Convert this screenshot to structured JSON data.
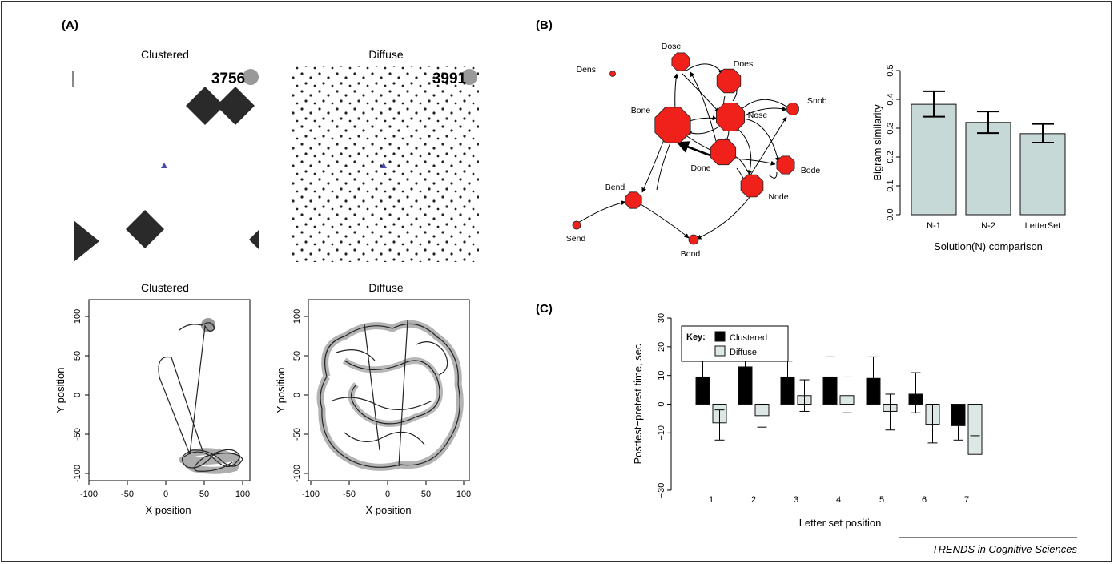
{
  "labels": {
    "a": "(A)",
    "b": "(B)",
    "c": "(C)"
  },
  "footer": "TRENDS in Cognitive Sciences",
  "panel_a": {
    "titles": [
      "Clustered",
      "Diffuse",
      "Clustered",
      "Diffuse"
    ],
    "counters": [
      "3756",
      "3991"
    ],
    "xlabel": "X position",
    "ylabel": "Y position",
    "ticks": [
      "-100",
      "-50",
      "0",
      "50",
      "100"
    ]
  },
  "chart_data": [
    {
      "type": "bar",
      "categories": [
        "N-1",
        "N-2",
        "LetterSet"
      ],
      "values": [
        0.383,
        0.32,
        0.281
      ],
      "error_low": [
        0.34,
        0.283,
        0.25
      ],
      "error_high": [
        0.428,
        0.358,
        0.315
      ],
      "ylim": [
        0,
        0.5
      ],
      "yticks": [
        "0.0",
        "0.1",
        "0.2",
        "0.3",
        "0.4",
        "0.5"
      ],
      "xlabel": "Solution(N) comparison",
      "ylabel": "Bigram similarity",
      "color": "#c7d9d7"
    },
    {
      "type": "bar",
      "categories": [
        "1",
        "2",
        "3",
        "4",
        "5",
        "6",
        "7"
      ],
      "series": [
        {
          "name": "Clustered",
          "values": [
            9.5,
            13,
            9.5,
            9.5,
            9,
            3.5,
            -7.5
          ],
          "error_low": [
            2.5,
            6.5,
            3,
            3,
            1.5,
            -3,
            -12.5
          ],
          "error_high": [
            16,
            19,
            15,
            16.5,
            16.5,
            11,
            -2.5
          ],
          "color": "#000000"
        },
        {
          "name": "Diffuse",
          "values": [
            -6.5,
            -4,
            3,
            3,
            -2.5,
            -7,
            -17.5
          ],
          "error_low": [
            -12.5,
            -8,
            -2.5,
            -3,
            -9,
            -13.5,
            -24
          ],
          "error_high": [
            -2,
            0,
            8.5,
            9.5,
            3.5,
            0,
            -11
          ],
          "color": "#dde8e6"
        }
      ],
      "ylim": [
        -30,
        30
      ],
      "yticks": [
        "−30",
        "−10",
        "0",
        "10",
        "20",
        "30"
      ],
      "xlabel": "Letter set position",
      "ylabel": "Posttest−pretest time, sec",
      "legend_title": "Key:"
    }
  ],
  "network": {
    "nodes": [
      {
        "label": "Dens"
      },
      {
        "label": "Dose"
      },
      {
        "label": "Does"
      },
      {
        "label": "Snob"
      },
      {
        "label": "Bone"
      },
      {
        "label": "Nose"
      },
      {
        "label": "Done"
      },
      {
        "label": "Bode"
      },
      {
        "label": "Node"
      },
      {
        "label": "Bend"
      },
      {
        "label": "Send"
      },
      {
        "label": "Bond"
      }
    ]
  }
}
